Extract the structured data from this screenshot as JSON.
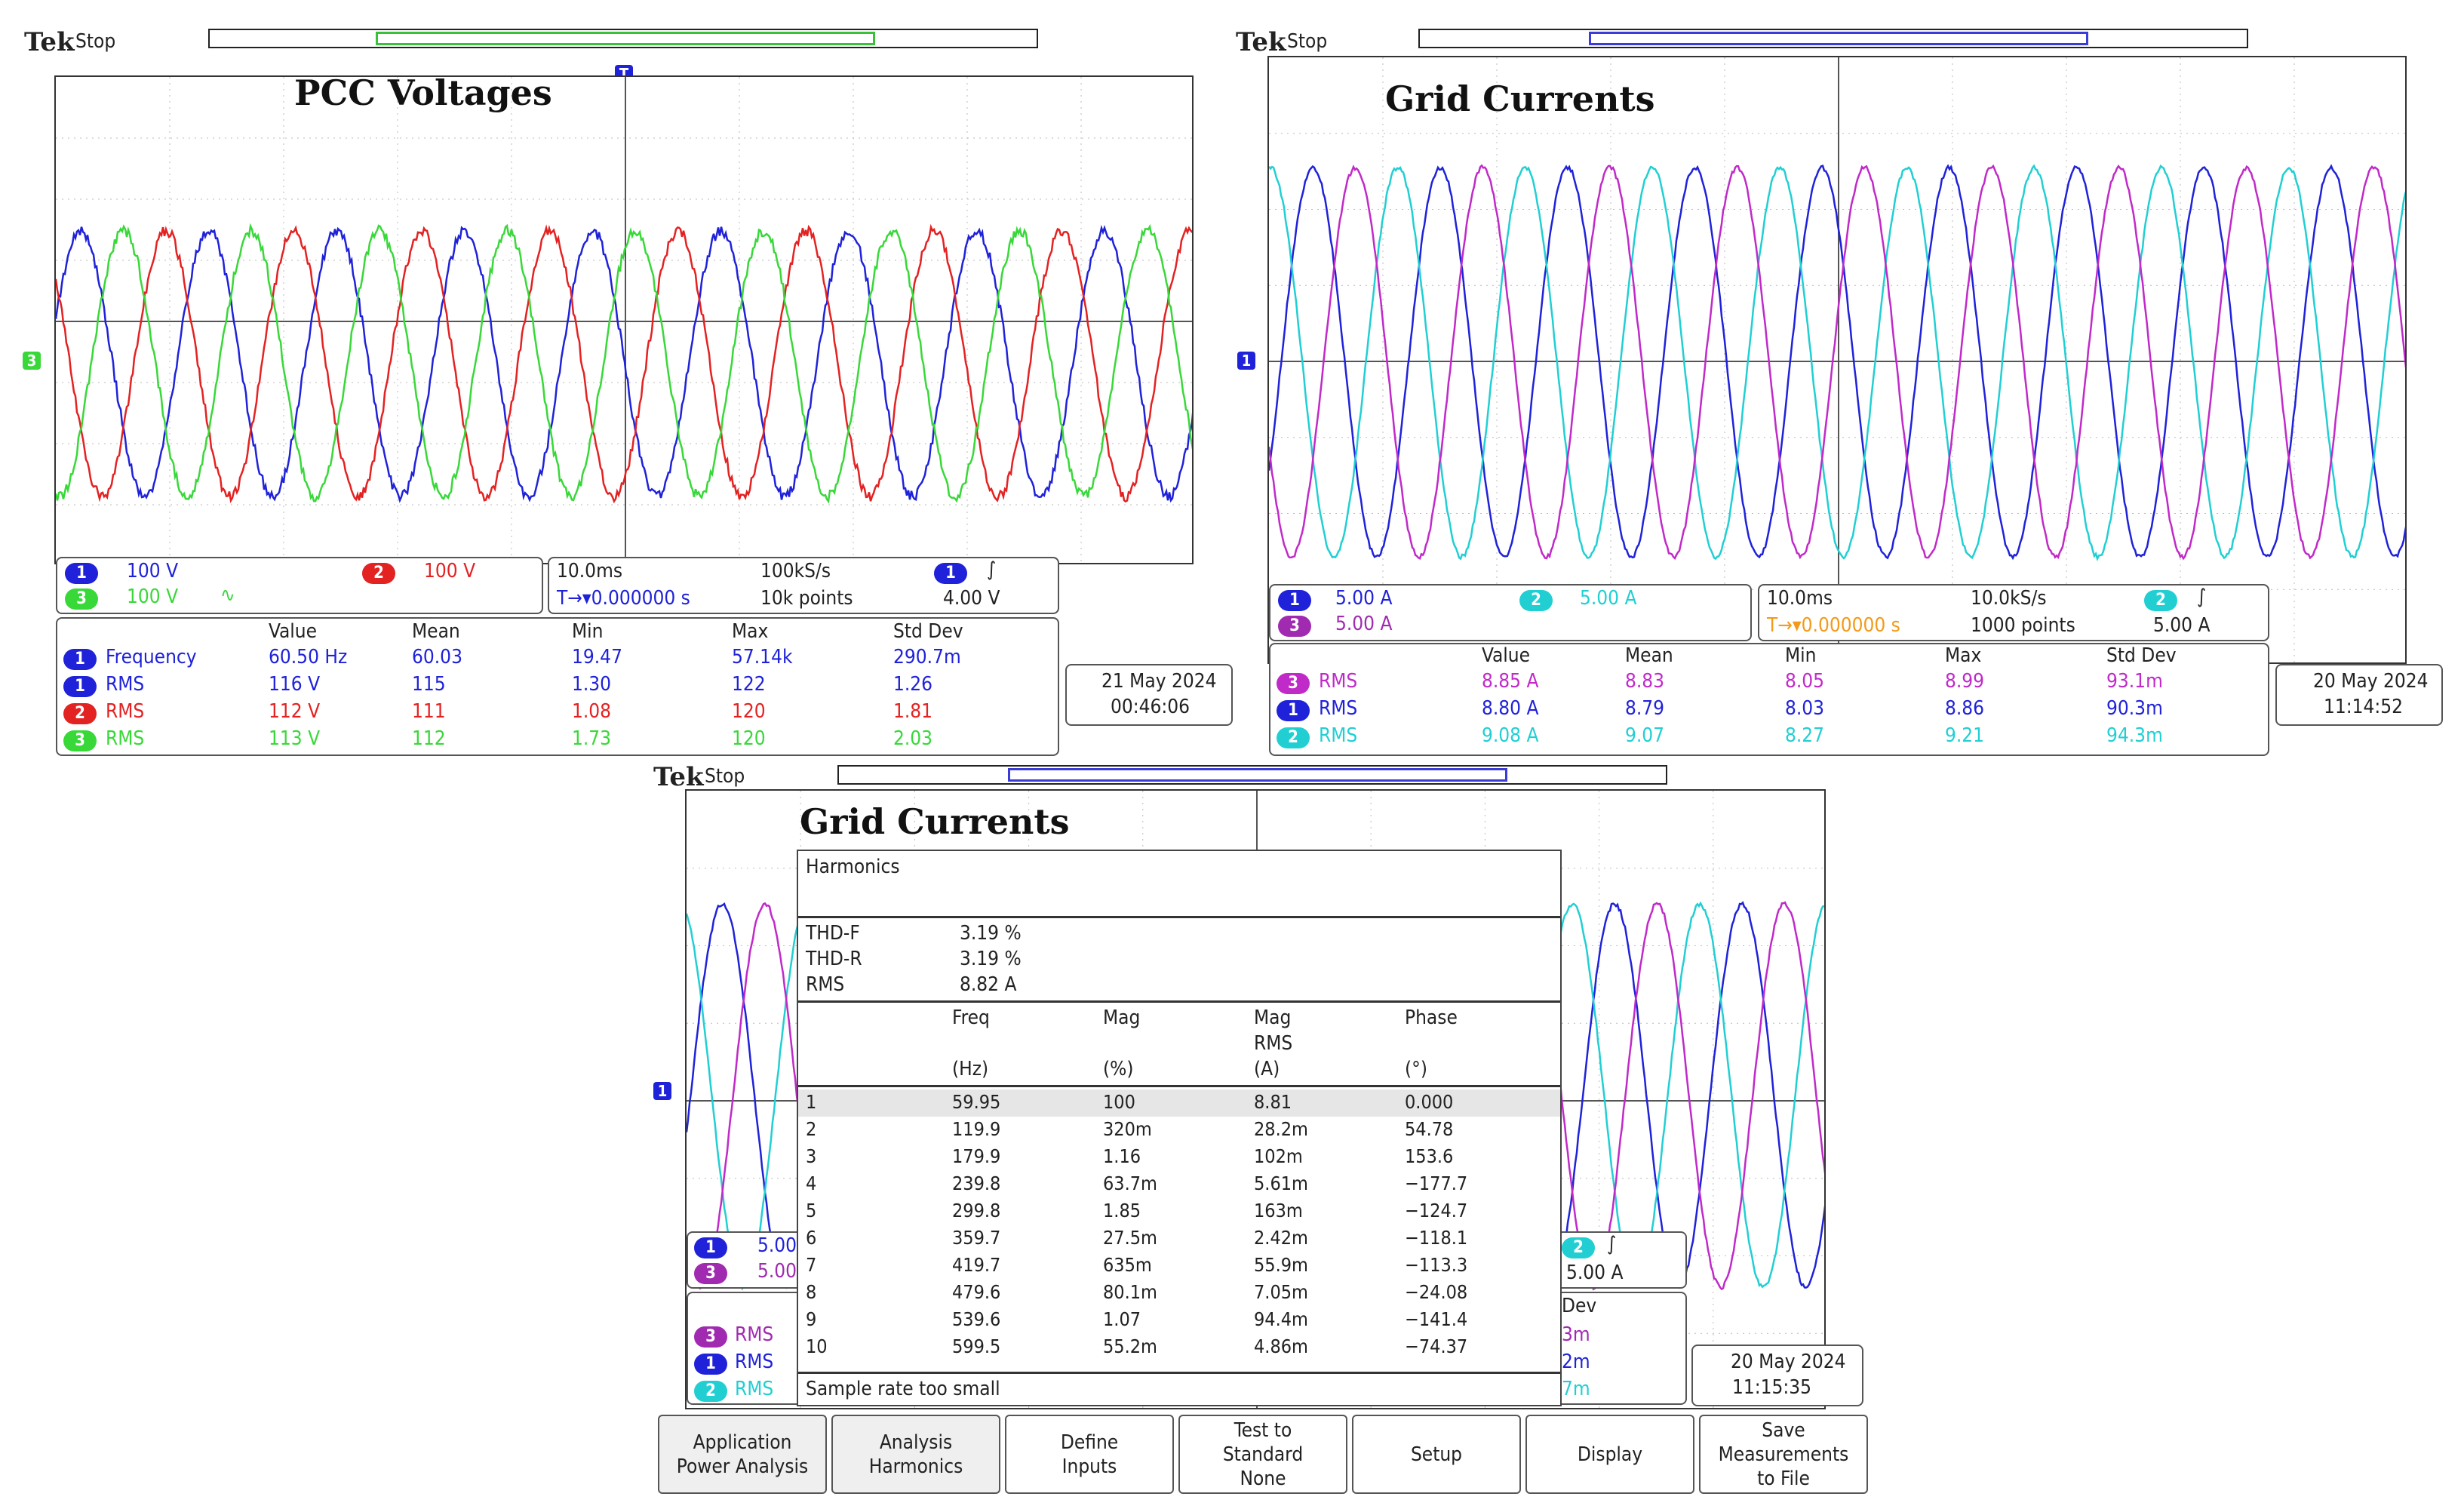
{
  "scope_a": {
    "brand": "Tek",
    "status": "Stop",
    "title": "PCC Voltages",
    "channels": [
      {
        "ch": "1",
        "scale": "100 V"
      },
      {
        "ch": "2",
        "scale": "100 V"
      },
      {
        "ch": "3",
        "scale": "100 V",
        "coupling": "∿"
      }
    ],
    "timebase": {
      "div": "10.0ms",
      "rate": "100kS/s",
      "delay": "0.000000 s",
      "points": "10k points",
      "trig_ch": "1",
      "trig_slope": "∫",
      "trig_level": "4.00 V"
    },
    "meas_headers": [
      "Value",
      "Mean",
      "Min",
      "Max",
      "Std Dev"
    ],
    "measurements": [
      {
        "ch": "1",
        "name": "Frequency",
        "value": "60.50 Hz",
        "mean": "60.03",
        "min": "19.47",
        "max": "57.14k",
        "std": "290.7m"
      },
      {
        "ch": "1",
        "name": "RMS",
        "value": "116 V",
        "mean": "115",
        "min": "1.30",
        "max": "122",
        "std": "1.26"
      },
      {
        "ch": "2",
        "name": "RMS",
        "value": "112 V",
        "mean": "111",
        "min": "1.08",
        "max": "120",
        "std": "1.81"
      },
      {
        "ch": "3",
        "name": "RMS",
        "value": "113 V",
        "mean": "112",
        "min": "1.73",
        "max": "120",
        "std": "2.03"
      }
    ],
    "date": "21 May  2024",
    "time": "00:46:06",
    "colors": {
      "ch1": "#1f22d8",
      "ch2": "#e32222",
      "ch3": "#39d839"
    }
  },
  "scope_b": {
    "brand": "Tek",
    "status": "Stop",
    "title": "Grid Currents",
    "channels": [
      {
        "ch": "1",
        "scale": "5.00 A"
      },
      {
        "ch": "2",
        "scale": "5.00 A"
      },
      {
        "ch": "3",
        "scale": "5.00 A"
      }
    ],
    "timebase": {
      "div": "10.0ms",
      "rate": "10.0kS/s",
      "delay": "0.000000 s",
      "points": "1000 points",
      "trig_ch": "2",
      "trig_slope": "∫",
      "trig_level": "5.00 A"
    },
    "meas_headers": [
      "Value",
      "Mean",
      "Min",
      "Max",
      "Std Dev"
    ],
    "measurements": [
      {
        "ch": "3",
        "name": "RMS",
        "value": "8.85 A",
        "mean": "8.83",
        "min": "8.05",
        "max": "8.99",
        "std": "93.1m"
      },
      {
        "ch": "1",
        "name": "RMS",
        "value": "8.80 A",
        "mean": "8.79",
        "min": "8.03",
        "max": "8.86",
        "std": "90.3m"
      },
      {
        "ch": "2",
        "name": "RMS",
        "value": "9.08 A",
        "mean": "9.07",
        "min": "8.27",
        "max": "9.21",
        "std": "94.3m"
      }
    ],
    "date": "20 May  2024",
    "time": "11:14:52",
    "colors": {
      "ch1": "#1f22d8",
      "ch2": "#21cfd3",
      "ch3": "#c02ac8"
    }
  },
  "scope_c": {
    "brand": "Tek",
    "status": "Stop",
    "title": "Grid Currents",
    "partial_scales": [
      "5.00",
      "5.00"
    ],
    "trig_ch": "2",
    "trig_slope": "∫",
    "trig_level": "5.00 A",
    "meas_names": [
      "RMS",
      "RMS",
      "RMS"
    ],
    "meas_ch": [
      "3",
      "1",
      "2"
    ],
    "std_dev_label": "Dev",
    "std_partial": [
      "3m",
      "2m",
      "7m"
    ],
    "date": "20 May  2024",
    "time": "11:15:35",
    "harmonics": {
      "title": "Harmonics",
      "summary": [
        {
          "label": "THD-F",
          "value": "3.19 %"
        },
        {
          "label": "THD-R",
          "value": "3.19 %"
        },
        {
          "label": "RMS",
          "value": "8.82 A"
        }
      ],
      "headers": {
        "freq": "Freq",
        "freq_unit": "(Hz)",
        "mag": "Mag",
        "mag_unit": "(%)",
        "magrms": "Mag",
        "magrms2": "RMS",
        "magrms_unit": "(A)",
        "phase": "Phase",
        "phase_unit": "(°)"
      },
      "rows": [
        {
          "n": "1",
          "freq": "59.95",
          "mag": "100",
          "rms": "8.81",
          "phase": "0.000"
        },
        {
          "n": "2",
          "freq": "119.9",
          "mag": "320m",
          "rms": "28.2m",
          "phase": "54.78"
        },
        {
          "n": "3",
          "freq": "179.9",
          "mag": "1.16",
          "rms": "102m",
          "phase": "153.6"
        },
        {
          "n": "4",
          "freq": "239.8",
          "mag": "63.7m",
          "rms": "5.61m",
          "phase": "−177.7"
        },
        {
          "n": "5",
          "freq": "299.8",
          "mag": "1.85",
          "rms": "163m",
          "phase": "−124.7"
        },
        {
          "n": "6",
          "freq": "359.7",
          "mag": "27.5m",
          "rms": "2.42m",
          "phase": "−118.1"
        },
        {
          "n": "7",
          "freq": "419.7",
          "mag": "635m",
          "rms": "55.9m",
          "phase": "−113.3"
        },
        {
          "n": "8",
          "freq": "479.6",
          "mag": "80.1m",
          "rms": "7.05m",
          "phase": "−24.08"
        },
        {
          "n": "9",
          "freq": "539.6",
          "mag": "1.07",
          "rms": "94.4m",
          "phase": "−141.4"
        },
        {
          "n": "10",
          "freq": "599.5",
          "mag": "55.2m",
          "rms": "4.86m",
          "phase": "−74.37"
        }
      ],
      "footer": "Sample rate too small"
    },
    "buttons": [
      {
        "l1": "Application",
        "l2": "Power Analysis",
        "l3": ""
      },
      {
        "l1": "Analysis",
        "l2": "Harmonics",
        "l3": ""
      },
      {
        "l1": "Define",
        "l2": "Inputs",
        "l3": ""
      },
      {
        "l1": "Test to",
        "l2": "Standard",
        "l3": "None"
      },
      {
        "l1": "Setup",
        "l2": "",
        "l3": ""
      },
      {
        "l1": "Display",
        "l2": "",
        "l3": ""
      },
      {
        "l1": "Save",
        "l2": "Measurements",
        "l3": "to File"
      }
    ]
  }
}
